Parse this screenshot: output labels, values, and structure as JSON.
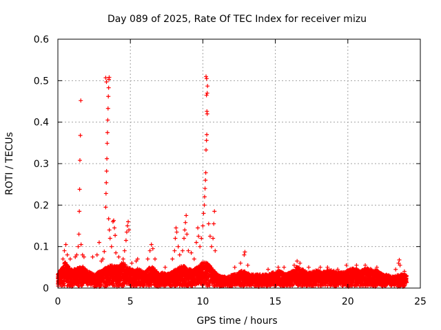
{
  "chart_data": {
    "type": "scatter",
    "title": "Day 089 of 2025, Rate Of TEC Index for receiver mizu",
    "xlabel": "GPS time / hours",
    "ylabel": "ROTI / TECUs",
    "xlim": [
      0,
      25
    ],
    "ylim": [
      0,
      0.6
    ],
    "x_ticks": [
      0,
      5,
      10,
      15,
      20,
      25
    ],
    "y_ticks": [
      0,
      0.1,
      0.2,
      0.3,
      0.4,
      0.5,
      0.6
    ],
    "x_tick_labels": [
      "0",
      "5",
      "10",
      "15",
      "20",
      "25"
    ],
    "y_tick_labels": [
      "0",
      "0.1",
      "0.2",
      "0.3",
      "0.4",
      "0.5",
      "0.6"
    ],
    "grid": true,
    "marker": "plus",
    "series_color": "#ff0000",
    "series": [
      {
        "name": "ROTI",
        "baseline": [
          [
            0.0,
            0.03
          ],
          [
            0.25,
            0.045
          ],
          [
            0.5,
            0.06
          ],
          [
            0.75,
            0.05
          ],
          [
            1.0,
            0.04
          ],
          [
            1.25,
            0.045
          ],
          [
            1.5,
            0.05
          ],
          [
            1.75,
            0.05
          ],
          [
            2.0,
            0.04
          ],
          [
            2.25,
            0.035
          ],
          [
            2.5,
            0.03
          ],
          [
            2.75,
            0.035
          ],
          [
            3.0,
            0.04
          ],
          [
            3.25,
            0.045
          ],
          [
            3.5,
            0.05
          ],
          [
            3.75,
            0.055
          ],
          [
            4.0,
            0.05
          ],
          [
            4.25,
            0.05
          ],
          [
            4.5,
            0.06
          ],
          [
            4.75,
            0.05
          ],
          [
            5.0,
            0.045
          ],
          [
            5.25,
            0.04
          ],
          [
            5.5,
            0.045
          ],
          [
            5.75,
            0.04
          ],
          [
            6.0,
            0.035
          ],
          [
            6.25,
            0.045
          ],
          [
            6.5,
            0.05
          ],
          [
            6.75,
            0.04
          ],
          [
            7.0,
            0.03
          ],
          [
            7.25,
            0.035
          ],
          [
            7.5,
            0.03
          ],
          [
            7.75,
            0.035
          ],
          [
            8.0,
            0.04
          ],
          [
            8.25,
            0.045
          ],
          [
            8.5,
            0.05
          ],
          [
            8.75,
            0.05
          ],
          [
            9.0,
            0.045
          ],
          [
            9.25,
            0.04
          ],
          [
            9.5,
            0.045
          ],
          [
            9.75,
            0.05
          ],
          [
            10.0,
            0.06
          ],
          [
            10.25,
            0.06
          ],
          [
            10.5,
            0.05
          ],
          [
            10.75,
            0.04
          ],
          [
            11.0,
            0.03
          ],
          [
            11.25,
            0.025
          ],
          [
            11.5,
            0.025
          ],
          [
            11.75,
            0.025
          ],
          [
            12.0,
            0.03
          ],
          [
            12.25,
            0.03
          ],
          [
            12.5,
            0.035
          ],
          [
            12.75,
            0.04
          ],
          [
            13.0,
            0.035
          ],
          [
            13.25,
            0.03
          ],
          [
            13.5,
            0.03
          ],
          [
            13.75,
            0.03
          ],
          [
            14.0,
            0.03
          ],
          [
            14.25,
            0.03
          ],
          [
            14.5,
            0.03
          ],
          [
            14.75,
            0.035
          ],
          [
            15.0,
            0.035
          ],
          [
            15.25,
            0.04
          ],
          [
            15.5,
            0.035
          ],
          [
            15.75,
            0.03
          ],
          [
            16.0,
            0.035
          ],
          [
            16.25,
            0.04
          ],
          [
            16.5,
            0.05
          ],
          [
            16.75,
            0.045
          ],
          [
            17.0,
            0.04
          ],
          [
            17.25,
            0.035
          ],
          [
            17.5,
            0.035
          ],
          [
            17.75,
            0.04
          ],
          [
            18.0,
            0.04
          ],
          [
            18.25,
            0.035
          ],
          [
            18.5,
            0.04
          ],
          [
            18.75,
            0.04
          ],
          [
            19.0,
            0.04
          ],
          [
            19.25,
            0.035
          ],
          [
            19.5,
            0.035
          ],
          [
            19.75,
            0.035
          ],
          [
            20.0,
            0.04
          ],
          [
            20.25,
            0.045
          ],
          [
            20.5,
            0.045
          ],
          [
            20.75,
            0.04
          ],
          [
            21.0,
            0.04
          ],
          [
            21.25,
            0.045
          ],
          [
            21.5,
            0.045
          ],
          [
            21.75,
            0.04
          ],
          [
            22.0,
            0.04
          ],
          [
            22.25,
            0.035
          ],
          [
            22.5,
            0.03
          ],
          [
            22.75,
            0.03
          ],
          [
            23.0,
            0.025
          ],
          [
            23.25,
            0.025
          ],
          [
            23.5,
            0.03
          ],
          [
            23.75,
            0.03
          ],
          [
            24.0,
            0.03
          ]
        ],
        "spikes": [
          [
            0.35,
            0.07
          ],
          [
            0.45,
            0.09
          ],
          [
            0.55,
            0.105
          ],
          [
            0.65,
            0.08
          ],
          [
            0.85,
            0.07
          ],
          [
            1.2,
            0.075
          ],
          [
            1.3,
            0.08
          ],
          [
            1.4,
            0.1
          ],
          [
            1.45,
            0.13
          ],
          [
            1.48,
            0.185
          ],
          [
            1.5,
            0.238
          ],
          [
            1.52,
            0.308
          ],
          [
            1.55,
            0.368
          ],
          [
            1.58,
            0.452
          ],
          [
            1.6,
            0.105
          ],
          [
            1.7,
            0.08
          ],
          [
            1.8,
            0.075
          ],
          [
            2.4,
            0.075
          ],
          [
            2.7,
            0.08
          ],
          [
            2.85,
            0.11
          ],
          [
            3.0,
            0.065
          ],
          [
            3.1,
            0.07
          ],
          [
            3.2,
            0.088
          ],
          [
            3.3,
            0.195
          ],
          [
            3.32,
            0.228
          ],
          [
            3.34,
            0.254
          ],
          [
            3.36,
            0.282
          ],
          [
            3.38,
            0.312
          ],
          [
            3.4,
            0.349
          ],
          [
            3.42,
            0.375
          ],
          [
            3.44,
            0.405
          ],
          [
            3.46,
            0.433
          ],
          [
            3.48,
            0.462
          ],
          [
            3.5,
            0.483
          ],
          [
            3.52,
            0.503
          ],
          [
            3.54,
            0.508
          ],
          [
            3.3,
            0.507
          ],
          [
            3.35,
            0.497
          ],
          [
            3.5,
            0.167
          ],
          [
            3.55,
            0.14
          ],
          [
            3.6,
            0.12
          ],
          [
            3.7,
            0.1
          ],
          [
            3.8,
            0.16
          ],
          [
            3.85,
            0.163
          ],
          [
            3.9,
            0.145
          ],
          [
            3.95,
            0.127
          ],
          [
            4.0,
            0.085
          ],
          [
            4.2,
            0.075
          ],
          [
            4.4,
            0.06
          ],
          [
            4.5,
            0.07
          ],
          [
            4.6,
            0.09
          ],
          [
            4.7,
            0.115
          ],
          [
            4.75,
            0.135
          ],
          [
            4.8,
            0.15
          ],
          [
            4.85,
            0.16
          ],
          [
            4.9,
            0.14
          ],
          [
            5.1,
            0.06
          ],
          [
            5.4,
            0.065
          ],
          [
            5.5,
            0.07
          ],
          [
            6.2,
            0.07
          ],
          [
            6.35,
            0.09
          ],
          [
            6.45,
            0.105
          ],
          [
            6.55,
            0.095
          ],
          [
            6.7,
            0.07
          ],
          [
            7.4,
            0.05
          ],
          [
            7.9,
            0.07
          ],
          [
            8.05,
            0.09
          ],
          [
            8.1,
            0.12
          ],
          [
            8.15,
            0.145
          ],
          [
            8.2,
            0.135
          ],
          [
            8.3,
            0.1
          ],
          [
            8.4,
            0.08
          ],
          [
            8.6,
            0.09
          ],
          [
            8.7,
            0.12
          ],
          [
            8.75,
            0.14
          ],
          [
            8.8,
            0.158
          ],
          [
            8.85,
            0.175
          ],
          [
            8.9,
            0.13
          ],
          [
            9.0,
            0.09
          ],
          [
            9.2,
            0.085
          ],
          [
            9.4,
            0.07
          ],
          [
            9.55,
            0.11
          ],
          [
            9.65,
            0.145
          ],
          [
            9.7,
            0.125
          ],
          [
            9.8,
            0.1
          ],
          [
            9.9,
            0.12
          ],
          [
            10.0,
            0.15
          ],
          [
            10.05,
            0.18
          ],
          [
            10.1,
            0.2
          ],
          [
            10.12,
            0.22
          ],
          [
            10.15,
            0.24
          ],
          [
            10.18,
            0.26
          ],
          [
            10.2,
            0.278
          ],
          [
            10.22,
            0.333
          ],
          [
            10.25,
            0.356
          ],
          [
            10.27,
            0.37
          ],
          [
            10.3,
            0.42
          ],
          [
            10.28,
            0.426
          ],
          [
            10.25,
            0.465
          ],
          [
            10.3,
            0.47
          ],
          [
            10.32,
            0.487
          ],
          [
            10.26,
            0.505
          ],
          [
            10.22,
            0.51
          ],
          [
            10.4,
            0.155
          ],
          [
            10.5,
            0.125
          ],
          [
            10.6,
            0.1
          ],
          [
            10.7,
            0.12
          ],
          [
            10.75,
            0.155
          ],
          [
            10.8,
            0.185
          ],
          [
            10.85,
            0.09
          ],
          [
            12.2,
            0.05
          ],
          [
            12.6,
            0.06
          ],
          [
            12.85,
            0.08
          ],
          [
            12.9,
            0.087
          ],
          [
            13.1,
            0.055
          ],
          [
            14.5,
            0.045
          ],
          [
            15.2,
            0.05
          ],
          [
            15.6,
            0.05
          ],
          [
            16.3,
            0.055
          ],
          [
            16.5,
            0.065
          ],
          [
            16.7,
            0.06
          ],
          [
            17.3,
            0.05
          ],
          [
            18.1,
            0.05
          ],
          [
            18.6,
            0.05
          ],
          [
            19.3,
            0.045
          ],
          [
            19.9,
            0.055
          ],
          [
            20.6,
            0.055
          ],
          [
            21.2,
            0.055
          ],
          [
            22.0,
            0.05
          ],
          [
            23.3,
            0.045
          ],
          [
            23.5,
            0.06
          ],
          [
            23.55,
            0.068
          ],
          [
            23.6,
            0.055
          ],
          [
            23.9,
            0.04
          ]
        ]
      }
    ]
  }
}
